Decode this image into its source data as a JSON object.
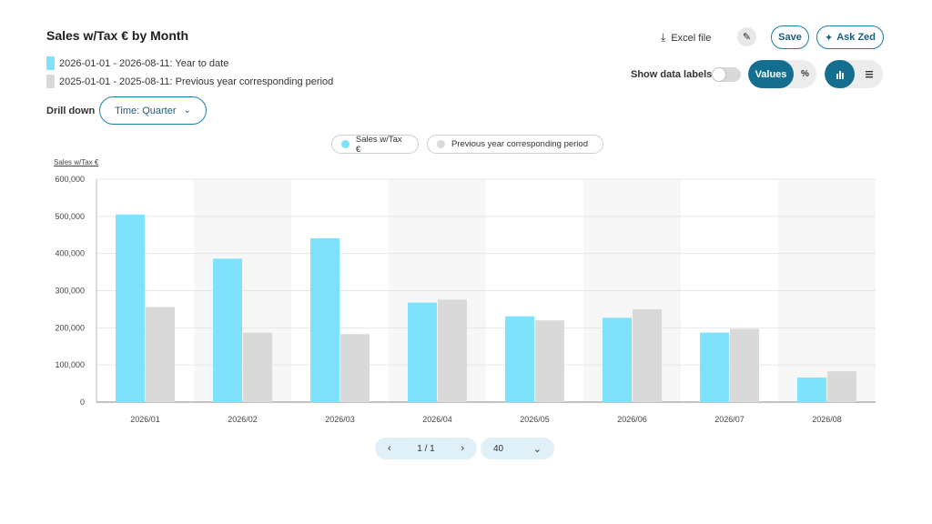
{
  "header": {
    "title": "Sales w/Tax € by Month",
    "period1": "2026-01-01 - 2026-08-11: Year to date",
    "period2": "2025-01-01 - 2025-08-11: Previous year corresponding period",
    "drill_label": "Drill down",
    "drill_value": "Time: Quarter"
  },
  "toolbar": {
    "excel_label": "Excel file",
    "save_label": "Save",
    "ask_label": "Ask Zed",
    "show_labels": "Show data labels",
    "values_label": "Values",
    "percent_label": "%"
  },
  "colors": {
    "current": "#7fe2fc",
    "previous": "#d9d9d9",
    "accent": "#136e8f"
  },
  "chart_data": {
    "type": "bar",
    "ylabel": "Sales w/Tax €",
    "ylim": [
      0,
      600000
    ],
    "yticks": [
      "0",
      "100,000",
      "200,000",
      "300,000",
      "400,000",
      "500,000",
      "600,000"
    ],
    "categories": [
      "2026/01",
      "2026/02",
      "2026/03",
      "2026/04",
      "2026/05",
      "2026/06",
      "2026/07",
      "2026/08"
    ],
    "series": [
      {
        "name": "Sales w/Tax €",
        "values": [
          505000,
          386000,
          441000,
          268000,
          231000,
          227000,
          187000,
          66000
        ]
      },
      {
        "name": "Previous year corresponding period",
        "values": [
          256000,
          187000,
          183000,
          276000,
          220000,
          250000,
          197000,
          83000
        ]
      }
    ],
    "grid": true,
    "legend": "top-center"
  },
  "pagination": {
    "page": "1 / 1",
    "per_page": "40"
  }
}
